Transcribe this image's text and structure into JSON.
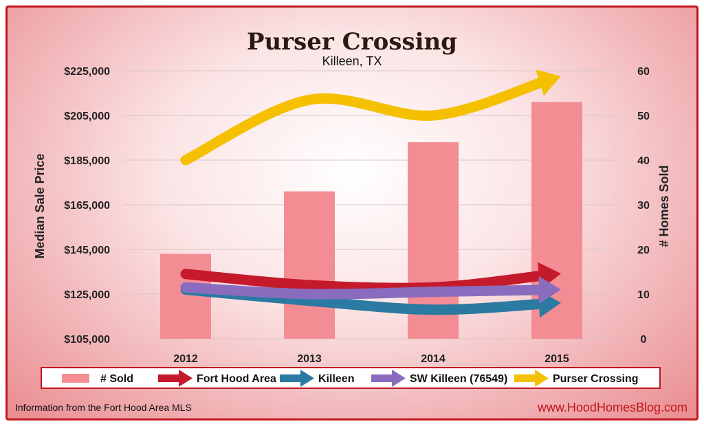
{
  "chart_data": {
    "type": "bar",
    "title": "Purser Crossing",
    "subtitle": "Killeen, TX",
    "categories": [
      "2012",
      "2013",
      "2014",
      "2015"
    ],
    "ylabel_left": "Median Sale Price",
    "ylabel_right": "# Homes Sold",
    "ylim_left": [
      105000,
      225000
    ],
    "ylim_right": [
      0,
      60
    ],
    "left_ticks": [
      "$105,000",
      "$125,000",
      "$145,000",
      "$165,000",
      "$185,000",
      "$205,000",
      "$225,000"
    ],
    "left_tick_values": [
      105000,
      125000,
      145000,
      165000,
      185000,
      205000,
      225000
    ],
    "right_ticks": [
      "0",
      "10",
      "20",
      "30",
      "40",
      "50",
      "60"
    ],
    "right_tick_values": [
      0,
      10,
      20,
      30,
      40,
      50,
      60
    ],
    "grid": true,
    "legend_position": "bottom",
    "series": [
      {
        "name": "# Sold",
        "kind": "bar",
        "axis": "right",
        "color": "#f48c94",
        "values": [
          19,
          33,
          44,
          53
        ]
      },
      {
        "name": "Fort Hood Area",
        "kind": "line-arrow",
        "axis": "left",
        "color": "#c41a2b",
        "values": [
          134000,
          129000,
          128000,
          134000
        ]
      },
      {
        "name": "Killeen",
        "kind": "line-arrow",
        "axis": "left",
        "color": "#2a7aa1",
        "values": [
          127000,
          122000,
          118000,
          121000
        ]
      },
      {
        "name": "SW Killeen (76549)",
        "kind": "line-arrow",
        "axis": "left",
        "color": "#8a6cbf",
        "values": [
          128000,
          125000,
          126000,
          127000
        ]
      },
      {
        "name": "Purser Crossing",
        "kind": "line-arrow",
        "axis": "left",
        "color": "#f5c000",
        "values": [
          185000,
          212000,
          205000,
          222000
        ]
      }
    ]
  },
  "footer": {
    "source": "Information from the Fort Hood Area MLS",
    "website": "www.HoodHomesBlog.com"
  }
}
